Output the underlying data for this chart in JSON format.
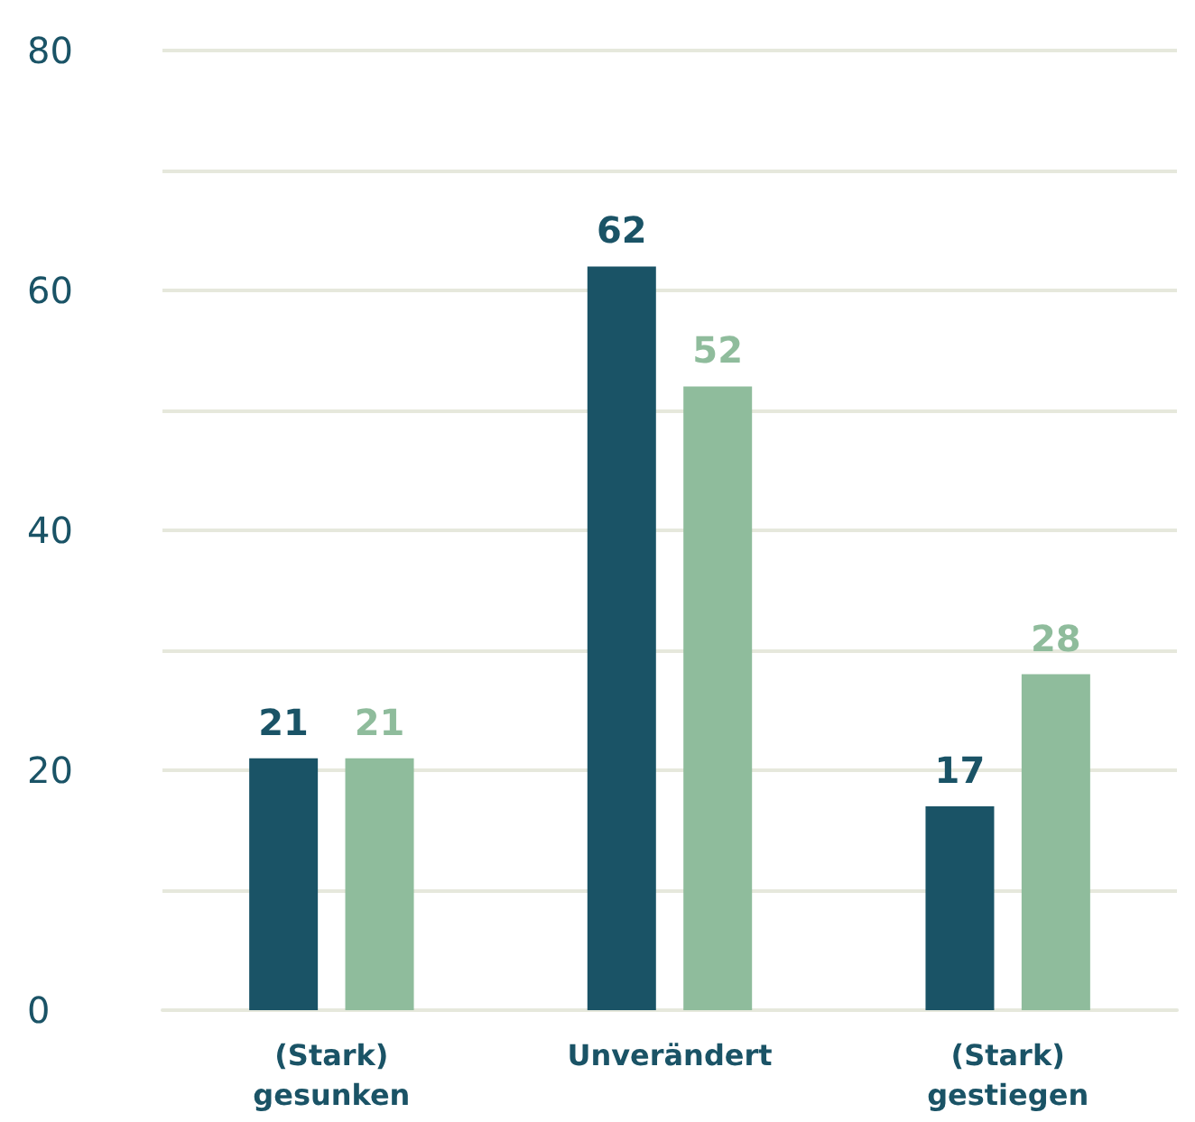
{
  "chart_data": {
    "type": "bar",
    "categories": [
      "(Stark)\ngesunken",
      "Unverändert",
      "(Stark)\ngestiegen"
    ],
    "series": [
      {
        "color": "#1a5366",
        "values": [
          21,
          62,
          17
        ]
      },
      {
        "color": "#8fbc9c",
        "values": [
          21,
          52,
          28
        ]
      }
    ],
    "ylim": [
      0,
      80
    ],
    "yticks": [
      0,
      {
        "value": 10,
        "label": null
      },
      20,
      {
        "value": 30,
        "label": null
      },
      40,
      {
        "value": 50,
        "label": null
      },
      60,
      {
        "value": 70,
        "label": null
      },
      80
    ],
    "grid": "y",
    "data_labels": true
  }
}
